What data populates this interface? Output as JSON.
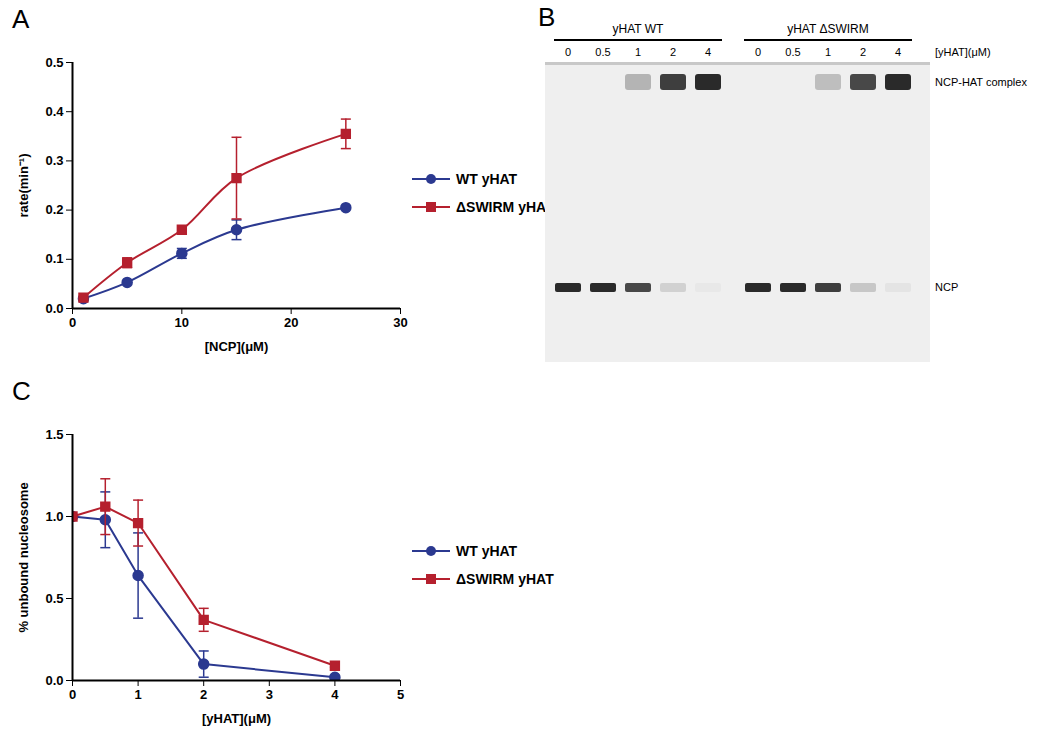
{
  "chart_data": [
    {
      "type": "line",
      "title": "A",
      "xlabel": "[NCP](μM)",
      "ylabel": "rate(min⁻¹)",
      "x": [
        1,
        5,
        10,
        15,
        25
      ],
      "xlim": [
        0,
        30
      ],
      "xticks": [
        0,
        10,
        20,
        30
      ],
      "ylim": [
        0,
        0.5
      ],
      "yticks": [
        {
          "value": 0,
          "label": "0.0"
        },
        0.1,
        0.2,
        0.3,
        0.4,
        0.5
      ],
      "series": [
        {
          "name": "WT yHAT",
          "color": "#2b3990",
          "marker": "circle",
          "line_style": "smooth",
          "values": [
            0.02,
            0.053,
            0.112,
            0.16,
            0.205
          ],
          "errors": [
            null,
            null,
            0.01,
            0.02,
            null
          ]
        },
        {
          "name": "ΔSWIRM yHAT",
          "color": "#b5202e",
          "marker": "square",
          "line_style": "smooth",
          "values": [
            0.022,
            0.093,
            0.16,
            0.265,
            0.355
          ],
          "errors": [
            null,
            0.01,
            null,
            0.083,
            0.03
          ]
        }
      ]
    },
    {
      "type": "gel",
      "title": "B",
      "lane_label": "[yHAT](μM)",
      "band_labels": {
        "complex": "NCP-HAT complex",
        "free": "NCP"
      },
      "groups": [
        {
          "name": "yHAT WT",
          "yhat": [
            0,
            0.5,
            1,
            2,
            4
          ],
          "complex": [
            0,
            0,
            0.3,
            0.9,
            1
          ],
          "free": [
            1,
            1,
            0.85,
            0.15,
            0.03
          ]
        },
        {
          "name": "yHAT ΔSWIRM",
          "yhat": [
            0,
            0.5,
            1,
            2,
            4
          ],
          "complex": [
            0,
            0,
            0.25,
            0.85,
            1
          ],
          "free": [
            1,
            1,
            0.9,
            0.2,
            0.05
          ]
        }
      ]
    },
    {
      "type": "line",
      "title": "C",
      "xlabel": "[yHAT](μM)",
      "ylabel": "% unbound nucleosome",
      "x": [
        0,
        0.5,
        1,
        2,
        4
      ],
      "xlim": [
        0,
        5
      ],
      "xticks": [
        0,
        1,
        2,
        3,
        4,
        5
      ],
      "ylim": [
        0,
        1.5
      ],
      "yticks": [
        {
          "value": 0,
          "label": "0.0"
        },
        0.5,
        {
          "value": 1,
          "label": "1.0"
        },
        1.5
      ],
      "series": [
        {
          "name": "WT yHAT",
          "color": "#2b3990",
          "marker": "circle",
          "line_style": "solid",
          "values": [
            1.0,
            0.98,
            0.64,
            0.1,
            0.02
          ],
          "errors": [
            null,
            0.17,
            0.26,
            0.08,
            0.01
          ]
        },
        {
          "name": "ΔSWIRM yHAT",
          "color": "#b5202e",
          "marker": "square",
          "line_style": "solid",
          "values": [
            1.0,
            1.06,
            0.96,
            0.37,
            0.09
          ],
          "errors": [
            null,
            0.17,
            0.14,
            0.07,
            0.01
          ]
        }
      ]
    }
  ]
}
